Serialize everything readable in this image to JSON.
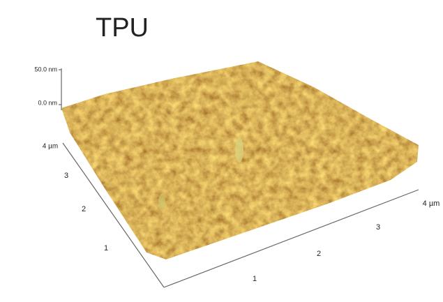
{
  "title": "TPU",
  "z_axis": {
    "labels": [
      "50.0 nm",
      "0.0 nm"
    ]
  },
  "y_axis": {
    "labels": [
      "4 µm",
      "3",
      "2",
      "1"
    ]
  },
  "x_axis": {
    "labels": [
      "1",
      "2",
      "3",
      "4 µm"
    ]
  }
}
